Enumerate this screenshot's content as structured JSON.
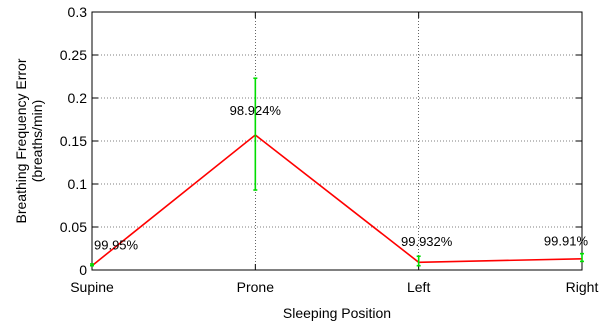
{
  "chart_data": {
    "type": "line",
    "title": "",
    "xlabel": "Sleeping Position",
    "ylabel": "Breathing Frequency Error",
    "ylabel_unit": "(breaths/min)",
    "categories": [
      "Supine",
      "Prone",
      "Left",
      "Right"
    ],
    "series": [
      {
        "values": [
          0.005,
          0.157,
          0.009,
          0.013
        ],
        "error_low": [
          0.005,
          0.093,
          0.005,
          0.01
        ],
        "error_high": [
          0.007,
          0.223,
          0.016,
          0.019
        ],
        "point_labels": [
          "99.95%",
          "98.924%",
          "99.932%",
          "99.91%"
        ]
      }
    ],
    "ylim": [
      0,
      0.3
    ],
    "yticks": [
      "0",
      "0.05",
      "0.1",
      "0.15",
      "0.2",
      "0.25",
      "0.3"
    ],
    "grid": true,
    "colors": {
      "line": "#ff0000",
      "errorbar": "#00dd00",
      "grid": "#000000"
    }
  }
}
